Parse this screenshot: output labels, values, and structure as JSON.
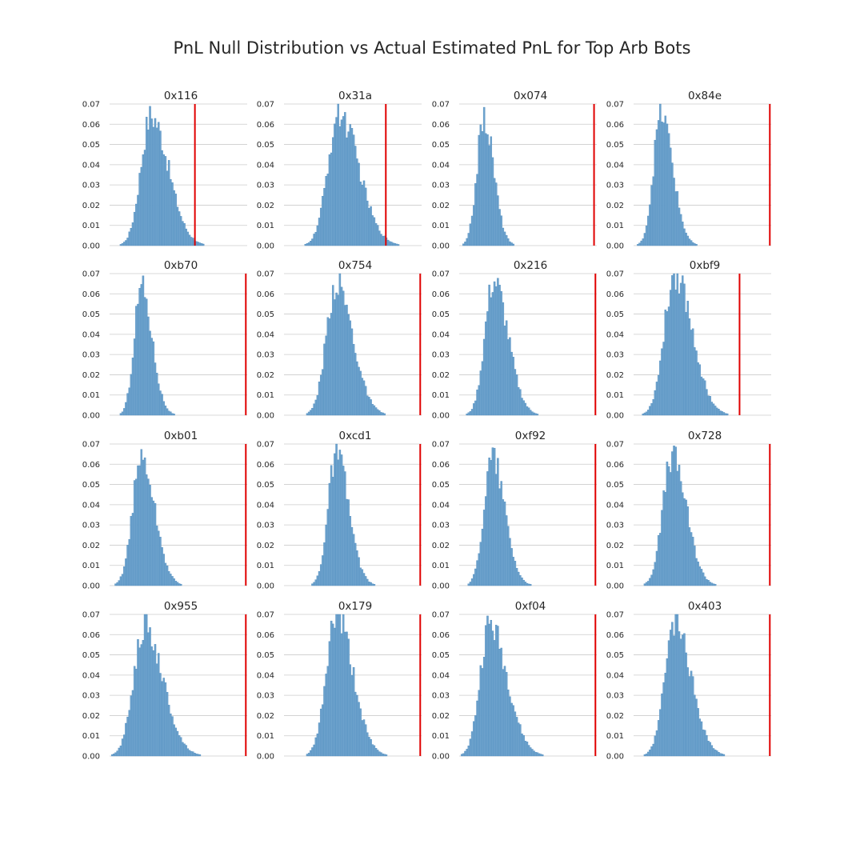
{
  "title": "PnL Null Distribution vs Actual Estimated PnL for Top Arb Bots",
  "colors": {
    "bar": "#6ea3cd",
    "bar_edge": "#4a88bc",
    "actual_line": "#e00000",
    "grid": "#cccccc",
    "text": "#262626"
  },
  "chart_data": [
    {
      "type": "bar",
      "subtype": "histogram",
      "title": "0x116",
      "ylim": [
        0,
        0.07
      ],
      "yticks": [
        "0.00",
        "0.01",
        "0.02",
        "0.03",
        "0.04",
        "0.05",
        "0.06",
        "0.07"
      ],
      "xlim": [
        0,
        1
      ],
      "null_dist": {
        "mean": 0.3,
        "sd": 0.085,
        "peak": 0.064,
        "skew": 1.5,
        "tail": 0.45
      },
      "actual_pnl": 0.62,
      "grid": true,
      "xaxis_visible": false
    },
    {
      "type": "bar",
      "subtype": "histogram",
      "title": "0x31a",
      "ylim": [
        0,
        0.07
      ],
      "yticks": [
        "0.00",
        "0.01",
        "0.02",
        "0.03",
        "0.04",
        "0.05",
        "0.06",
        "0.07"
      ],
      "xlim": [
        0,
        1
      ],
      "null_dist": {
        "mean": 0.4,
        "sd": 0.095,
        "peak": 0.065,
        "skew": 1.5,
        "tail": 0.55
      },
      "actual_pnl": 0.74,
      "grid": true,
      "xaxis_visible": false
    },
    {
      "type": "bar",
      "subtype": "histogram",
      "title": "0x074",
      "ylim": [
        0,
        0.07
      ],
      "yticks": [
        "0.00",
        "0.01",
        "0.02",
        "0.03",
        "0.04",
        "0.05",
        "0.06",
        "0.07"
      ],
      "xlim": [
        0,
        1
      ],
      "null_dist": {
        "mean": 0.18,
        "sd": 0.06,
        "peak": 0.063,
        "skew": 1.2,
        "tail": 0.2
      },
      "actual_pnl": 0.98,
      "grid": true,
      "xaxis_visible": false
    },
    {
      "type": "bar",
      "subtype": "histogram",
      "title": "0x84e",
      "ylim": [
        0,
        0.07
      ],
      "yticks": [
        "0.00",
        "0.01",
        "0.02",
        "0.03",
        "0.04",
        "0.05",
        "0.06",
        "0.07"
      ],
      "xlim": [
        0,
        1
      ],
      "null_dist": {
        "mean": 0.2,
        "sd": 0.065,
        "peak": 0.065,
        "skew": 1.3,
        "tail": 0.25
      },
      "actual_pnl": 0.99,
      "grid": true,
      "xaxis_visible": false
    },
    {
      "type": "bar",
      "subtype": "histogram",
      "title": "0xb70",
      "ylim": [
        0,
        0.07
      ],
      "yticks": [
        "0.00",
        "0.01",
        "0.02",
        "0.03",
        "0.04",
        "0.05",
        "0.06",
        "0.07"
      ],
      "xlim": [
        0,
        1
      ],
      "null_dist": {
        "mean": 0.23,
        "sd": 0.06,
        "peak": 0.064,
        "skew": 1.3,
        "tail": 0.3
      },
      "actual_pnl": 0.99,
      "grid": true,
      "xaxis_visible": false
    },
    {
      "type": "bar",
      "subtype": "histogram",
      "title": "0x754",
      "ylim": [
        0,
        0.07
      ],
      "yticks": [
        "0.00",
        "0.01",
        "0.02",
        "0.03",
        "0.04",
        "0.05",
        "0.06",
        "0.07"
      ],
      "xlim": [
        0,
        1
      ],
      "null_dist": {
        "mean": 0.38,
        "sd": 0.085,
        "peak": 0.065,
        "skew": 1.4,
        "tail": 0.5
      },
      "actual_pnl": 0.99,
      "grid": true,
      "xaxis_visible": false
    },
    {
      "type": "bar",
      "subtype": "histogram",
      "title": "0x216",
      "ylim": [
        0,
        0.07
      ],
      "yticks": [
        "0.00",
        "0.01",
        "0.02",
        "0.03",
        "0.04",
        "0.05",
        "0.06",
        "0.07"
      ],
      "xlim": [
        0,
        1
      ],
      "null_dist": {
        "mean": 0.25,
        "sd": 0.075,
        "peak": 0.066,
        "skew": 1.4,
        "tail": 0.35
      },
      "actual_pnl": 0.99,
      "grid": true,
      "xaxis_visible": false
    },
    {
      "type": "bar",
      "subtype": "histogram",
      "title": "0xbf9",
      "ylim": [
        0,
        0.07
      ],
      "yticks": [
        "0.00",
        "0.01",
        "0.02",
        "0.03",
        "0.04",
        "0.05",
        "0.06",
        "0.07"
      ],
      "xlim": [
        0,
        1
      ],
      "null_dist": {
        "mean": 0.3,
        "sd": 0.09,
        "peak": 0.07,
        "skew": 1.4,
        "tail": 0.5
      },
      "actual_pnl": 0.77,
      "grid": true,
      "xaxis_visible": false
    },
    {
      "type": "bar",
      "subtype": "histogram",
      "title": "0xb01",
      "ylim": [
        0,
        0.07
      ],
      "yticks": [
        "0.00",
        "0.01",
        "0.02",
        "0.03",
        "0.04",
        "0.05",
        "0.06",
        "0.07"
      ],
      "xlim": [
        0,
        1
      ],
      "null_dist": {
        "mean": 0.23,
        "sd": 0.075,
        "peak": 0.063,
        "skew": 1.3,
        "tail": 0.3
      },
      "actual_pnl": 0.99,
      "grid": true,
      "xaxis_visible": false
    },
    {
      "type": "bar",
      "subtype": "histogram",
      "title": "0xcd1",
      "ylim": [
        0,
        0.07
      ],
      "yticks": [
        "0.00",
        "0.01",
        "0.02",
        "0.03",
        "0.04",
        "0.05",
        "0.06",
        "0.07"
      ],
      "xlim": [
        0,
        1
      ],
      "null_dist": {
        "mean": 0.38,
        "sd": 0.07,
        "peak": 0.065,
        "skew": 1.3,
        "tail": 0.45
      },
      "actual_pnl": 0.99,
      "grid": true,
      "xaxis_visible": false
    },
    {
      "type": "bar",
      "subtype": "histogram",
      "title": "0xf92",
      "ylim": [
        0,
        0.07
      ],
      "yticks": [
        "0.00",
        "0.01",
        "0.02",
        "0.03",
        "0.04",
        "0.05",
        "0.06",
        "0.07"
      ],
      "xlim": [
        0,
        1
      ],
      "null_dist": {
        "mean": 0.24,
        "sd": 0.07,
        "peak": 0.064,
        "skew": 1.3,
        "tail": 0.3
      },
      "actual_pnl": 0.99,
      "grid": true,
      "xaxis_visible": false
    },
    {
      "type": "bar",
      "subtype": "histogram",
      "title": "0x728",
      "ylim": [
        0,
        0.07
      ],
      "yticks": [
        "0.00",
        "0.01",
        "0.02",
        "0.03",
        "0.04",
        "0.05",
        "0.06",
        "0.07"
      ],
      "xlim": [
        0,
        1
      ],
      "null_dist": {
        "mean": 0.28,
        "sd": 0.08,
        "peak": 0.064,
        "skew": 1.3,
        "tail": 0.35
      },
      "actual_pnl": 0.99,
      "grid": true,
      "xaxis_visible": false
    },
    {
      "type": "bar",
      "subtype": "histogram",
      "title": "0x955",
      "ylim": [
        0,
        0.07
      ],
      "yticks": [
        "0.00",
        "0.01",
        "0.02",
        "0.03",
        "0.04",
        "0.05",
        "0.06",
        "0.07"
      ],
      "xlim": [
        0,
        1
      ],
      "null_dist": {
        "mean": 0.25,
        "sd": 0.09,
        "peak": 0.064,
        "skew": 1.5,
        "tail": 0.4
      },
      "actual_pnl": 0.99,
      "grid": true,
      "xaxis_visible": false
    },
    {
      "type": "bar",
      "subtype": "histogram",
      "title": "0x179",
      "ylim": [
        0,
        0.07
      ],
      "yticks": [
        "0.00",
        "0.01",
        "0.02",
        "0.03",
        "0.04",
        "0.05",
        "0.06",
        "0.07"
      ],
      "xlim": [
        0,
        1
      ],
      "null_dist": {
        "mean": 0.38,
        "sd": 0.085,
        "peak": 0.07,
        "skew": 1.4,
        "tail": 0.55
      },
      "actual_pnl": 0.99,
      "grid": true,
      "xaxis_visible": false
    },
    {
      "type": "bar",
      "subtype": "histogram",
      "title": "0xf04",
      "ylim": [
        0,
        0.07
      ],
      "yticks": [
        "0.00",
        "0.01",
        "0.02",
        "0.03",
        "0.04",
        "0.05",
        "0.06",
        "0.07"
      ],
      "xlim": [
        0,
        1
      ],
      "null_dist": {
        "mean": 0.22,
        "sd": 0.08,
        "peak": 0.065,
        "skew": 1.6,
        "tail": 0.4
      },
      "actual_pnl": 0.99,
      "grid": true,
      "xaxis_visible": false
    },
    {
      "type": "bar",
      "subtype": "histogram",
      "title": "0x403",
      "ylim": [
        0,
        0.07
      ],
      "yticks": [
        "0.00",
        "0.01",
        "0.02",
        "0.03",
        "0.04",
        "0.05",
        "0.06",
        "0.07"
      ],
      "xlim": [
        0,
        1
      ],
      "null_dist": {
        "mean": 0.3,
        "sd": 0.085,
        "peak": 0.065,
        "skew": 1.4,
        "tail": 0.45
      },
      "actual_pnl": 0.99,
      "grid": true,
      "xaxis_visible": false
    }
  ]
}
